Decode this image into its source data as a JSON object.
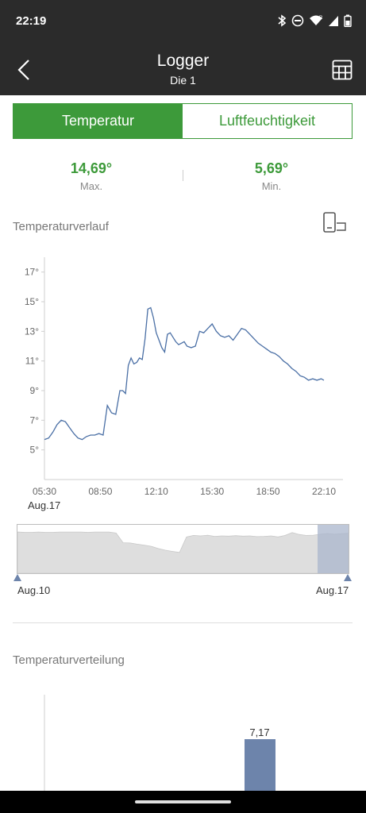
{
  "status_bar": {
    "time": "22:19",
    "icons": [
      "bluetooth-icon",
      "do-not-disturb-icon",
      "wifi-icon",
      "signal-icon",
      "battery-icon"
    ]
  },
  "app_bar": {
    "title": "Logger",
    "subtitle": "Die 1",
    "back_icon": "back-arrow-icon",
    "table_icon": "table-grid-icon"
  },
  "tabs": {
    "temperature": "Temperatur",
    "humidity": "Luftfeuchtigkeit",
    "active": "temperature"
  },
  "stats": {
    "max_value": "14,69°",
    "max_label": "Max.",
    "min_value": "5,69°",
    "min_label": "Min."
  },
  "history_section": {
    "title": "Temperaturverlauf",
    "rotate_icon": "rotate-screen-icon"
  },
  "chart_data": [
    {
      "type": "line",
      "series": [
        {
          "x": [
            "05:30",
            "05:45",
            "06:00",
            "06:15",
            "06:30",
            "06:45",
            "07:00",
            "07:15",
            "07:30",
            "07:45",
            "08:00",
            "08:15",
            "08:30",
            "08:45",
            "09:00",
            "09:15",
            "09:30",
            "09:45",
            "10:00",
            "10:10",
            "10:20",
            "10:30",
            "10:40",
            "10:50",
            "11:00",
            "11:10",
            "11:20",
            "11:30",
            "11:40",
            "11:50",
            "12:00",
            "12:10",
            "12:20",
            "12:30",
            "12:40",
            "12:50",
            "13:00",
            "13:10",
            "13:20",
            "13:30",
            "13:40",
            "13:50",
            "14:00",
            "14:15",
            "14:30",
            "14:45",
            "15:00",
            "15:15",
            "15:30",
            "15:45",
            "16:00",
            "16:15",
            "16:30",
            "16:45",
            "17:00",
            "17:15",
            "17:30",
            "17:45",
            "18:00",
            "18:15",
            "18:30",
            "18:45",
            "19:00",
            "19:15",
            "19:30",
            "19:45",
            "20:00",
            "20:15",
            "20:30",
            "20:45",
            "21:00",
            "21:15",
            "21:30",
            "21:45",
            "22:00",
            "22:10"
          ],
          "values": [
            5.7,
            5.8,
            6.2,
            6.7,
            7.0,
            6.9,
            6.5,
            6.1,
            5.8,
            5.7,
            5.9,
            6.0,
            6.0,
            6.1,
            6.0,
            8.0,
            7.5,
            7.4,
            9.0,
            9.0,
            8.8,
            10.7,
            11.2,
            10.8,
            10.9,
            11.2,
            11.1,
            12.5,
            14.5,
            14.6,
            13.9,
            12.9,
            12.4,
            11.9,
            11.6,
            12.8,
            12.9,
            12.6,
            12.3,
            12.1,
            12.2,
            12.3,
            12.0,
            11.9,
            12.0,
            13.0,
            12.9,
            13.2,
            13.5,
            13.0,
            12.7,
            12.6,
            12.7,
            12.4,
            12.8,
            13.2,
            13.1,
            12.8,
            12.5,
            12.2,
            12.0,
            11.8,
            11.6,
            11.5,
            11.3,
            11.0,
            10.8,
            10.5,
            10.3,
            10.0,
            9.9,
            9.7,
            9.8,
            9.7,
            9.8,
            9.7
          ]
        }
      ],
      "x_ticks": [
        "05:30",
        "08:50",
        "12:10",
        "15:30",
        "18:50",
        "22:10"
      ],
      "x_date_label": "Aug.17",
      "y_ticks": [
        "5°",
        "7°",
        "9°",
        "11°",
        "13°",
        "15°",
        "17°"
      ],
      "ylim": [
        3.0,
        18.0
      ],
      "grid": false,
      "line_color": "#4a6fa5"
    },
    {
      "type": "area",
      "series": [
        {
          "values": [
            17.0,
            16.9,
            16.9,
            17.0,
            16.9,
            16.9,
            17.0,
            17.0,
            17.0,
            17.0,
            16.9,
            17.0,
            17.0,
            17.0,
            16.6,
            12.6,
            12.5,
            12.0,
            11.6,
            11.1,
            10.2,
            9.5,
            9.0,
            8.6,
            15.0,
            15.6,
            15.4,
            15.7,
            15.2,
            15.4,
            15.3,
            15.5,
            15.3,
            15.4,
            15.1,
            15.2,
            15.4,
            15.0,
            15.6,
            16.8,
            16.0,
            15.6,
            15.7,
            16.1,
            16.4,
            16.1,
            16.3,
            16.5
          ]
        }
      ],
      "date_labels": [
        "Aug.10",
        "Aug.17"
      ],
      "fill_color": "#dedede",
      "selection_color": "#a9b6cc"
    }
  ],
  "distribution_section": {
    "title": "Temperaturverteilung",
    "bar_label": "7,17",
    "bar_value": 7.17,
    "bar_color": "#6d84ab"
  }
}
